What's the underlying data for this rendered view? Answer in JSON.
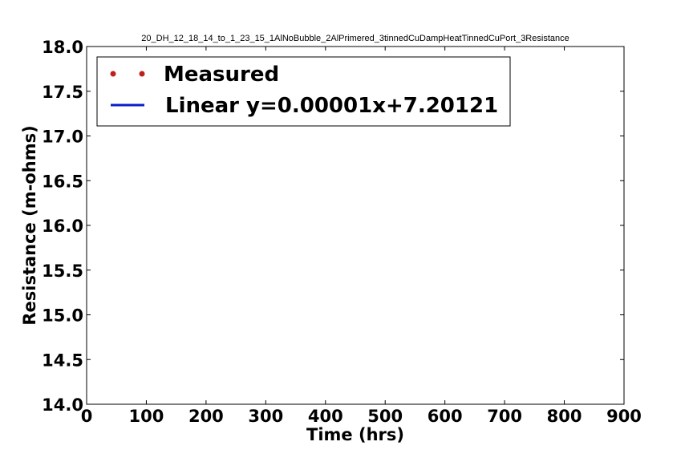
{
  "chart_data": {
    "type": "scatter",
    "title": "20_DH_12_18_14_to_1_23_15_1AlNoBubble_2AlPrimered_3tinnedCuDampHeatTinnedCuPort_3Resistance",
    "xlabel": "Time (hrs)",
    "ylabel": "Resistance (m-ohms)",
    "xlim": [
      0,
      900
    ],
    "ylim": [
      14.0,
      18.0
    ],
    "x_ticks": [
      "0",
      "100",
      "200",
      "300",
      "400",
      "500",
      "600",
      "700",
      "800",
      "900"
    ],
    "y_ticks": [
      "14.0",
      "14.5",
      "15.0",
      "15.5",
      "16.0",
      "16.5",
      "17.0",
      "17.5",
      "18.0"
    ],
    "grid": false,
    "legend_position": "top-left",
    "series": [
      {
        "name": "Measured",
        "kind": "markers",
        "color": "#c0201a",
        "x": [],
        "y": []
      },
      {
        "name": "Linear y=0.00001x+7.20121",
        "kind": "line",
        "color": "#0a1fc4",
        "slope": 1e-05,
        "intercept": 7.20121
      }
    ]
  }
}
